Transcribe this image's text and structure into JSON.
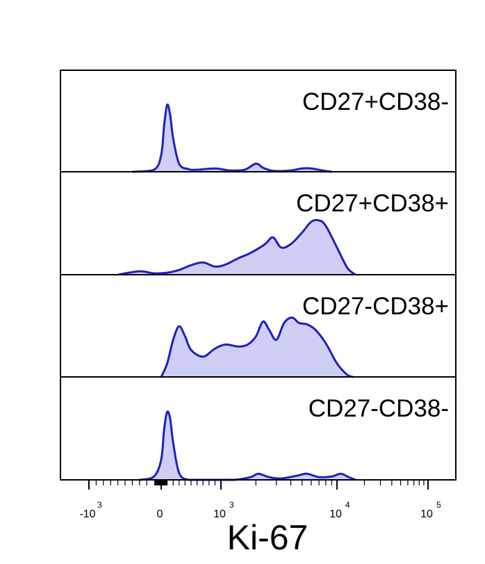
{
  "chart_data": {
    "type": "area",
    "xlabel": "Ki-67",
    "x_scale": "biexponential",
    "x_ticks": [
      {
        "value": -1000,
        "base": "-10",
        "exp": "3"
      },
      {
        "value": 0,
        "base": "0",
        "exp": ""
      },
      {
        "value": 1000,
        "base": "10",
        "exp": "3"
      },
      {
        "value": 10000,
        "base": "10",
        "exp": "4"
      },
      {
        "value": 100000,
        "base": "10",
        "exp": "5"
      }
    ],
    "fill_color": "#cfcff5",
    "line_color": "#1f1fbf",
    "panels": [
      {
        "label": "CD27+CD38-",
        "x": [
          -400,
          -100,
          0,
          50,
          100,
          150,
          200,
          300,
          450,
          600,
          900,
          1200,
          1600,
          2000,
          2300,
          2700,
          3200,
          4000,
          5000,
          6000,
          7500,
          9000
        ],
        "y": [
          0.0,
          0.03,
          0.25,
          0.7,
          1.0,
          0.85,
          0.5,
          0.12,
          0.04,
          0.03,
          0.05,
          0.02,
          0.03,
          0.12,
          0.06,
          0.02,
          0.01,
          0.02,
          0.05,
          0.05,
          0.02,
          0.0
        ]
      },
      {
        "label": "CD27+CD38+",
        "x": [
          -600,
          -300,
          -100,
          100,
          300,
          500,
          700,
          900,
          1100,
          1400,
          1800,
          2400,
          2800,
          3300,
          4000,
          5000,
          6000,
          7000,
          8000,
          10000,
          13000,
          16000
        ],
        "y": [
          0.0,
          0.05,
          0.02,
          0.03,
          0.07,
          0.14,
          0.18,
          0.12,
          0.15,
          0.24,
          0.32,
          0.45,
          0.55,
          0.4,
          0.45,
          0.62,
          0.78,
          0.8,
          0.72,
          0.4,
          0.1,
          0.0
        ]
      },
      {
        "label": "CD27-CD38+",
        "x": [
          0,
          100,
          200,
          300,
          400,
          500,
          700,
          900,
          1100,
          1400,
          1700,
          2000,
          2300,
          2600,
          3000,
          3500,
          4100,
          4700,
          5500,
          6500,
          8000,
          10000,
          13000,
          15000
        ],
        "y": [
          0.0,
          0.2,
          0.55,
          0.75,
          0.6,
          0.4,
          0.3,
          0.42,
          0.48,
          0.45,
          0.48,
          0.6,
          0.82,
          0.7,
          0.55,
          0.8,
          0.88,
          0.8,
          0.78,
          0.7,
          0.5,
          0.2,
          0.03,
          0.0
        ]
      },
      {
        "label": "CD27-CD38-",
        "x": [
          -300,
          -100,
          0,
          50,
          100,
          150,
          200,
          300,
          450,
          600,
          900,
          1300,
          1800,
          2100,
          2600,
          3300,
          4500,
          5500,
          7000,
          9000,
          11000,
          13500,
          16000
        ],
        "y": [
          0.0,
          0.05,
          0.3,
          0.75,
          1.0,
          0.9,
          0.55,
          0.1,
          0.0,
          0.0,
          0.0,
          0.0,
          0.04,
          0.09,
          0.04,
          0.02,
          0.06,
          0.09,
          0.04,
          0.05,
          0.09,
          0.04,
          0.0
        ]
      }
    ]
  }
}
